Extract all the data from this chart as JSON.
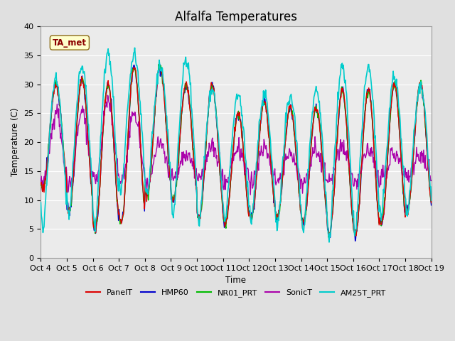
{
  "title": "Alfalfa Temperatures",
  "xlabel": "Time",
  "ylabel": "Temperature (C)",
  "ylim": [
    0,
    40
  ],
  "yticks": [
    0,
    5,
    10,
    15,
    20,
    25,
    30,
    35,
    40
  ],
  "xtick_labels": [
    "Oct 4",
    "Oct 5",
    "Oct 6",
    "Oct 7",
    "Oct 8",
    "Oct 9",
    "Oct 10",
    "Oct 11",
    "Oct 12",
    "Oct 13",
    "Oct 14",
    "Oct 15",
    "Oct 16",
    "Oct 17",
    "Oct 18",
    "Oct 19"
  ],
  "annotation_text": "TA_met",
  "annotation_color": "#8B0000",
  "annotation_bg": "#FFFFCC",
  "annotation_border": "#8B6914",
  "series_order": [
    "HMP60",
    "NR01_PRT",
    "SonicT",
    "PanelT",
    "AM25T_PRT"
  ],
  "series": {
    "PanelT": {
      "color": "#DD0000",
      "lw": 1.0,
      "zorder": 4
    },
    "HMP60": {
      "color": "#0000CC",
      "lw": 1.0,
      "zorder": 3
    },
    "NR01_PRT": {
      "color": "#00BB00",
      "lw": 1.0,
      "zorder": 3
    },
    "SonicT": {
      "color": "#AA00AA",
      "lw": 1.0,
      "zorder": 3
    },
    "AM25T_PRT": {
      "color": "#00CCCC",
      "lw": 1.2,
      "zorder": 5
    }
  },
  "legend_order": [
    "PanelT",
    "HMP60",
    "NR01_PRT",
    "SonicT",
    "AM25T_PRT"
  ],
  "background_color": "#E0E0E0",
  "plot_bg": "#EBEBEB",
  "grid_color": "#FFFFFF",
  "title_fontsize": 12,
  "legend_fontsize": 8,
  "tick_fontsize": 8
}
